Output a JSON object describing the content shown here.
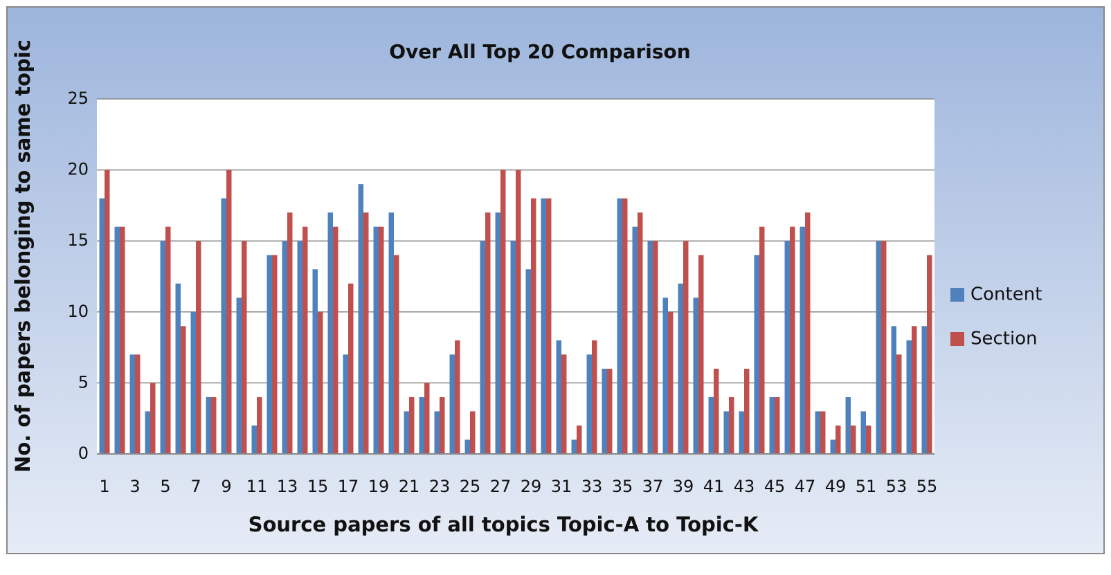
{
  "chart_data": {
    "type": "bar",
    "title": "Over All Top 20 Comparison",
    "x_label": "Source papers of all topics Topic-A to Topic-K",
    "y_label": "No. of papers belonging to same topic",
    "categories": [
      "1",
      null,
      "3",
      null,
      "5",
      null,
      "7",
      null,
      "9",
      null,
      "11",
      null,
      "13",
      null,
      "15",
      null,
      "17",
      null,
      "19",
      null,
      "21",
      null,
      "23",
      null,
      "25",
      null,
      "27",
      null,
      "29",
      null,
      "31",
      null,
      "33",
      null,
      "35",
      null,
      "37",
      null,
      "39",
      null,
      "41",
      null,
      "43",
      null,
      "45",
      null,
      "47",
      null,
      "49",
      null,
      "51",
      null,
      "53",
      null,
      "55"
    ],
    "series": [
      {
        "name": "Content",
        "color": "#4f81bd",
        "values": [
          18,
          16,
          7,
          3,
          15,
          12,
          10,
          4,
          18,
          11,
          2,
          14,
          15,
          15,
          13,
          17,
          7,
          19,
          16,
          17,
          3,
          4,
          3,
          7,
          1,
          15,
          17,
          15,
          13,
          18,
          8,
          1,
          7,
          6,
          18,
          16,
          15,
          11,
          12,
          11,
          4,
          3,
          3,
          14,
          4,
          15,
          16,
          3,
          1,
          4,
          3,
          15,
          9,
          8,
          9
        ]
      },
      {
        "name": "Section",
        "color": "#c0504d",
        "values": [
          20,
          16,
          7,
          5,
          16,
          9,
          15,
          4,
          20,
          15,
          4,
          14,
          17,
          16,
          10,
          16,
          12,
          17,
          16,
          14,
          4,
          5,
          4,
          8,
          3,
          17,
          20,
          20,
          18,
          18,
          7,
          2,
          8,
          6,
          18,
          17,
          15,
          10,
          15,
          14,
          6,
          4,
          6,
          16,
          4,
          16,
          17,
          3,
          2,
          2,
          2,
          15,
          7,
          9,
          14
        ]
      }
    ],
    "ylim": [
      0,
      25
    ],
    "yticks": [
      0,
      5,
      10,
      15,
      20,
      25
    ],
    "grid": true,
    "legend": "right"
  }
}
